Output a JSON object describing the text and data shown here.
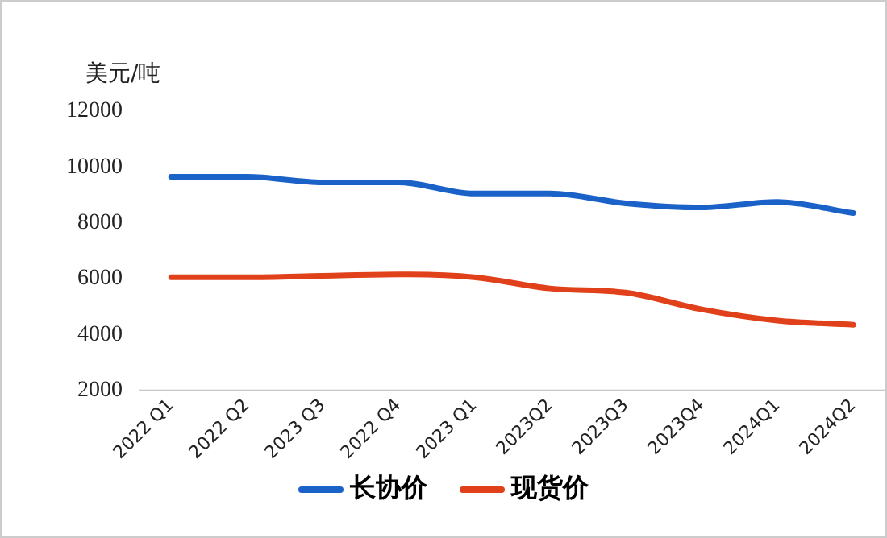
{
  "chart_data": {
    "type": "line",
    "ylabel": "美元/吨",
    "categories": [
      "2022 Q1",
      "2022 Q2",
      "2023 Q3",
      "2022 Q4",
      "2023 Q1",
      "2023Q2",
      "2023Q3",
      "2023Q4",
      "2024Q1",
      "2024Q2"
    ],
    "series": [
      {
        "name": "长协价",
        "color": "#1a62c8",
        "values": [
          9650,
          9650,
          9450,
          9450,
          9050,
          9050,
          8700,
          8550,
          8750,
          8350
        ]
      },
      {
        "name": "现货价",
        "color": "#e0401a",
        "values": [
          6050,
          6050,
          6100,
          6150,
          6050,
          5650,
          5500,
          4900,
          4500,
          4350
        ]
      }
    ],
    "ylim": [
      2000,
      12000
    ],
    "yticks": [
      2000,
      4000,
      6000,
      8000,
      10000,
      12000
    ],
    "grid": false,
    "legend": "bottom",
    "marker": "none"
  }
}
